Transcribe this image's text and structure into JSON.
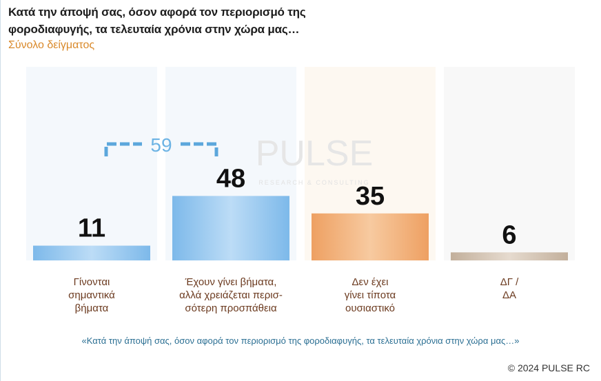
{
  "title": "Κατά την άποψή σας, όσον αφορά τον περιορισμό της φοροδιαφυγής, τα τελευταία χρόνια στην χώρα μας…",
  "subtitle": "Σύνολο δείγματος",
  "footnote": "«Κατά την άποψή σας, όσον αφορά τον περιορισμό της φοροδιαφυγής, τα τελευταία χρόνια στην χώρα μας…»",
  "copyright": "© 2024 PULSE RC",
  "watermark": {
    "brand": "PULSE",
    "tagline": "RESEARCH & CONSULTING"
  },
  "colors": {
    "blue": "#8cc3ef",
    "orange": "#f0a86a",
    "taupe": "#c9b8a6",
    "label": "#6b3a1f",
    "bracket": "#5ca7dc"
  },
  "chart_data": {
    "type": "bar",
    "categories": [
      [
        "Γίνονται",
        "σημαντικά",
        "βήματα"
      ],
      [
        "Έχουν γίνει βήματα,",
        "αλλά χρειάζεται περισ-",
        "σότερη προσπάθεια"
      ],
      [
        "Δεν έχει",
        "γίνει τίποτα",
        "ουσιαστικό"
      ],
      [
        "ΔΓ /",
        "ΔΑ"
      ]
    ],
    "values": [
      11,
      48,
      35,
      6
    ],
    "bar_colors": [
      "blue",
      "blue",
      "orange",
      "taupe"
    ],
    "combined": {
      "indices": [
        0,
        1
      ],
      "value": 59
    },
    "ylim": [
      0,
      100
    ]
  }
}
